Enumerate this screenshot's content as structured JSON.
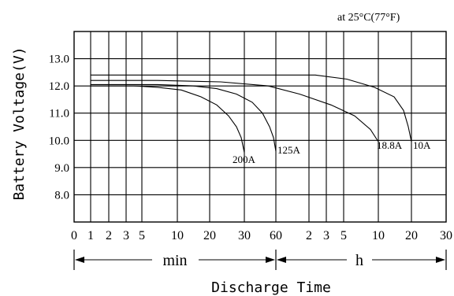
{
  "chart_data": {
    "type": "line",
    "title": "at 25°C(77°F)",
    "xlabel": "Discharge Time",
    "ylabel": "Battery Voltage(V)",
    "x_scale": "log",
    "x_tick_labels": [
      "0",
      "1",
      "2",
      "3",
      "5",
      "10",
      "20",
      "30",
      "60",
      "2",
      "3",
      "5",
      "10",
      "20",
      "30"
    ],
    "y_ticks": [
      "13.0",
      "12.0",
      "11.0",
      "10.0",
      "9.0",
      "8.0"
    ],
    "ylim": [
      7.0,
      14.0
    ],
    "grid": true,
    "x_ranges": {
      "min": "min",
      "h": "h"
    },
    "series": [
      {
        "name": "200A",
        "end_x": "30 min",
        "end_voltage": 9.55
      },
      {
        "name": "125A",
        "end_x": "60 min",
        "end_voltage": 9.6
      },
      {
        "name": "18.8A",
        "end_x": "10 h",
        "end_voltage": 9.95
      },
      {
        "name": "10A",
        "end_x": "20 h",
        "end_voltage": 9.95
      }
    ]
  }
}
